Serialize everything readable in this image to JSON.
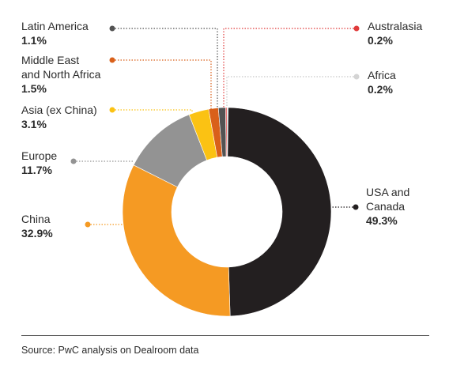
{
  "chart_data": {
    "type": "pie",
    "donut": true,
    "slices": [
      {
        "label": "USA and\nCanada",
        "value": 49.3,
        "value_label": "49.3%",
        "color": "#231f20"
      },
      {
        "label": "China",
        "value": 32.9,
        "value_label": "32.9%",
        "color": "#f59a23"
      },
      {
        "label": "Europe",
        "value": 11.7,
        "value_label": "11.7%",
        "color": "#939393"
      },
      {
        "label": "Asia (ex China)",
        "value": 3.1,
        "value_label": "3.1%",
        "color": "#fbc213"
      },
      {
        "label": "Middle East\nand North Africa",
        "value": 1.5,
        "value_label": "1.5%",
        "color": "#d9601a"
      },
      {
        "label": "Latin America",
        "value": 1.1,
        "value_label": "1.1%",
        "color": "#535353"
      },
      {
        "label": "Australasia",
        "value": 0.2,
        "value_label": "0.2%",
        "color": "#e03b3b"
      },
      {
        "label": "Africa",
        "value": 0.2,
        "value_label": "0.2%",
        "color": "#dcdcdc"
      }
    ]
  },
  "source": "Source: PwC analysis on Dealroom data"
}
